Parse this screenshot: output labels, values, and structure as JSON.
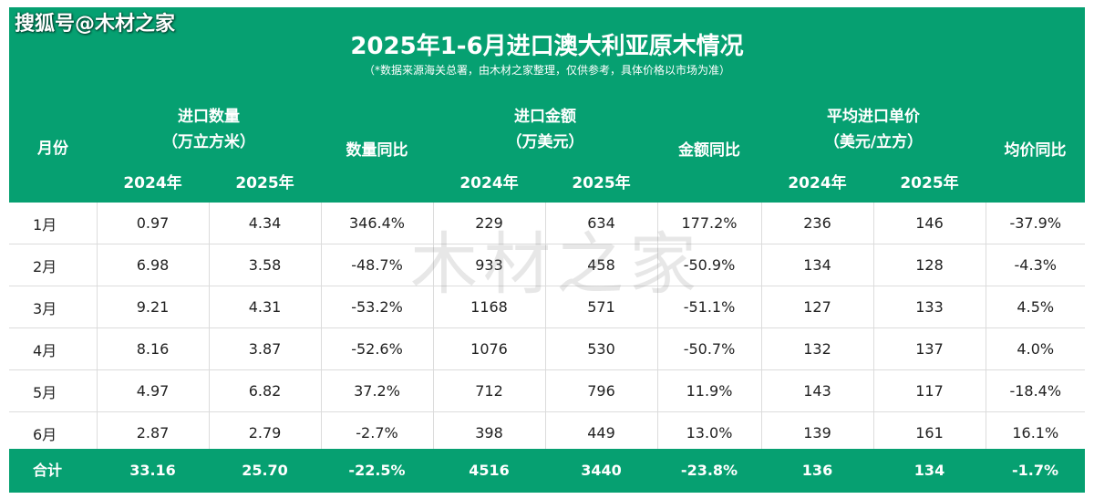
{
  "watermark": "搜狐号@木材之家",
  "center_watermark": "木材之家",
  "title": "2025年1-6月进口澳大利亚原木情况",
  "subtitle": "（*数据来源海关总署，由木材之家整理，仅供参考，具体价格以市场为准）",
  "headers": {
    "month": "月份",
    "qty_group": "进口数量",
    "qty_unit": "（万立方米）",
    "qty_yoy": "数量同比",
    "amt_group": "进口金额",
    "amt_unit": "（万美元）",
    "amt_yoy": "金额同比",
    "price_group": "平均进口单价",
    "price_unit": "（美元/立方）",
    "price_yoy": "均价同比",
    "y2024": "2024年",
    "y2025": "2025年"
  },
  "rows": [
    {
      "month": "1月",
      "q24": "0.97",
      "q25": "4.34",
      "qy": "346.4%",
      "a24": "229",
      "a25": "634",
      "ay": "177.2%",
      "p24": "236",
      "p25": "146",
      "py": "-37.9%"
    },
    {
      "month": "2月",
      "q24": "6.98",
      "q25": "3.58",
      "qy": "-48.7%",
      "a24": "933",
      "a25": "458",
      "ay": "-50.9%",
      "p24": "134",
      "p25": "128",
      "py": "-4.3%"
    },
    {
      "month": "3月",
      "q24": "9.21",
      "q25": "4.31",
      "qy": "-53.2%",
      "a24": "1168",
      "a25": "571",
      "ay": "-51.1%",
      "p24": "127",
      "p25": "133",
      "py": "4.5%"
    },
    {
      "month": "4月",
      "q24": "8.16",
      "q25": "3.87",
      "qy": "-52.6%",
      "a24": "1076",
      "a25": "530",
      "ay": "-50.7%",
      "p24": "132",
      "p25": "137",
      "py": "4.0%"
    },
    {
      "month": "5月",
      "q24": "4.97",
      "q25": "6.82",
      "qy": "37.2%",
      "a24": "712",
      "a25": "796",
      "ay": "11.9%",
      "p24": "143",
      "p25": "117",
      "py": "-18.4%"
    },
    {
      "month": "6月",
      "q24": "2.87",
      "q25": "2.79",
      "qy": "-2.7%",
      "a24": "398",
      "a25": "449",
      "ay": "13.0%",
      "p24": "139",
      "p25": "161",
      "py": "16.1%"
    }
  ],
  "total": {
    "label": "合计",
    "q24": "33.16",
    "q25": "25.70",
    "qy": "-22.5%",
    "a24": "4516",
    "a25": "3440",
    "ay": "-23.8%",
    "p24": "136",
    "p25": "134",
    "py": "-1.7%"
  },
  "colors": {
    "header_green": "#06a071",
    "increase_red": "#e0262c",
    "decrease_green": "#1a9a66"
  }
}
